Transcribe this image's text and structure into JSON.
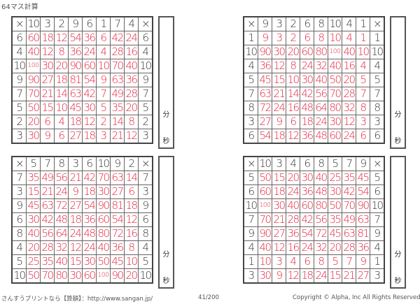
{
  "title": "64マス計算",
  "times_symbol": "×",
  "minute_label": "分",
  "second_label": "秒",
  "grids": [
    {
      "cols": [
        "10",
        "3",
        "2",
        "9",
        "6",
        "1",
        "7",
        "4"
      ],
      "rows": [
        "6",
        "4",
        "10",
        "9",
        "7",
        "5",
        "2",
        "3"
      ],
      "answers": [
        [
          "60",
          "18",
          "12",
          "54",
          "36",
          "6",
          "42",
          "24"
        ],
        [
          "40",
          "12",
          "8",
          "36",
          "24",
          "4",
          "28",
          "16"
        ],
        [
          "100",
          "30",
          "20",
          "90",
          "60",
          "10",
          "70",
          "40"
        ],
        [
          "90",
          "27",
          "18",
          "81",
          "54",
          "9",
          "63",
          "36"
        ],
        [
          "70",
          "21",
          "14",
          "63",
          "42",
          "7",
          "49",
          "28"
        ],
        [
          "50",
          "15",
          "10",
          "45",
          "30",
          "5",
          "35",
          "20"
        ],
        [
          "20",
          "6",
          "4",
          "18",
          "12",
          "2",
          "14",
          "8"
        ],
        [
          "30",
          "9",
          "6",
          "27",
          "18",
          "3",
          "21",
          "12"
        ]
      ]
    },
    {
      "cols": [
        "9",
        "3",
        "2",
        "6",
        "8",
        "10",
        "4",
        "1"
      ],
      "rows": [
        "1",
        "10",
        "4",
        "5",
        "7",
        "8",
        "3",
        "6"
      ],
      "answers": [
        [
          "9",
          "3",
          "2",
          "6",
          "8",
          "10",
          "4",
          "1"
        ],
        [
          "90",
          "30",
          "20",
          "60",
          "80",
          "100",
          "40",
          "10"
        ],
        [
          "36",
          "12",
          "8",
          "24",
          "32",
          "40",
          "16",
          "4"
        ],
        [
          "45",
          "15",
          "10",
          "30",
          "40",
          "50",
          "20",
          "5"
        ],
        [
          "63",
          "21",
          "14",
          "42",
          "56",
          "70",
          "28",
          "7"
        ],
        [
          "72",
          "24",
          "16",
          "48",
          "64",
          "80",
          "32",
          "8"
        ],
        [
          "27",
          "9",
          "6",
          "18",
          "24",
          "30",
          "12",
          "3"
        ],
        [
          "54",
          "18",
          "12",
          "36",
          "48",
          "60",
          "24",
          "6"
        ]
      ]
    },
    {
      "cols": [
        "5",
        "7",
        "8",
        "3",
        "6",
        "10",
        "9",
        "2"
      ],
      "rows": [
        "7",
        "3",
        "9",
        "6",
        "8",
        "4",
        "5",
        "10"
      ],
      "answers": [
        [
          "35",
          "49",
          "56",
          "21",
          "42",
          "70",
          "63",
          "14"
        ],
        [
          "15",
          "21",
          "24",
          "9",
          "18",
          "30",
          "27",
          "6"
        ],
        [
          "45",
          "63",
          "72",
          "27",
          "54",
          "90",
          "81",
          "18"
        ],
        [
          "30",
          "42",
          "48",
          "18",
          "36",
          "60",
          "54",
          "12"
        ],
        [
          "40",
          "56",
          "64",
          "24",
          "48",
          "80",
          "72",
          "16"
        ],
        [
          "20",
          "28",
          "32",
          "12",
          "24",
          "40",
          "36",
          "8"
        ],
        [
          "25",
          "35",
          "40",
          "15",
          "30",
          "50",
          "45",
          "10"
        ],
        [
          "50",
          "70",
          "80",
          "30",
          "60",
          "100",
          "90",
          "20"
        ]
      ]
    },
    {
      "cols": [
        "10",
        "3",
        "4",
        "6",
        "8",
        "5",
        "7",
        "9"
      ],
      "rows": [
        "5",
        "6",
        "10",
        "7",
        "9",
        "4",
        "1",
        "3"
      ],
      "answers": [
        [
          "50",
          "15",
          "20",
          "30",
          "40",
          "25",
          "35",
          "45"
        ],
        [
          "60",
          "18",
          "24",
          "36",
          "48",
          "30",
          "42",
          "54"
        ],
        [
          "100",
          "30",
          "40",
          "60",
          "80",
          "50",
          "70",
          "90"
        ],
        [
          "70",
          "21",
          "28",
          "42",
          "56",
          "35",
          "49",
          "63"
        ],
        [
          "90",
          "27",
          "36",
          "54",
          "72",
          "45",
          "63",
          "81"
        ],
        [
          "40",
          "12",
          "16",
          "24",
          "32",
          "20",
          "28",
          "36"
        ],
        [
          "10",
          "3",
          "4",
          "6",
          "8",
          "5",
          "7",
          "9"
        ],
        [
          "30",
          "9",
          "12",
          "18",
          "24",
          "15",
          "21",
          "27"
        ]
      ]
    }
  ],
  "footer": {
    "site": "さんすうプリントなら【算額】：http://www.sangan.jp/",
    "page": "41/200",
    "copyright": "Copyright © Alpha, Inc All Rights Reserved."
  },
  "colors": {
    "answer": "#e8203a",
    "header": "#333333"
  }
}
